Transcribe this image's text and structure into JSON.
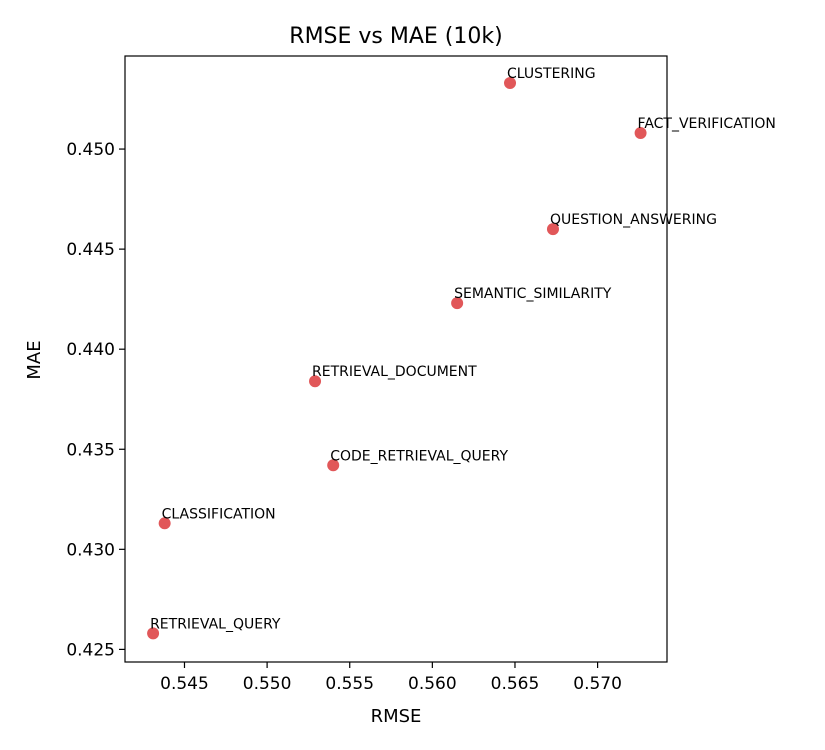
{
  "chart_data": {
    "type": "scatter",
    "title": "RMSE vs MAE (10k)",
    "xlabel": "RMSE",
    "ylabel": "MAE",
    "xlim": [
      0.5414,
      0.5742
    ],
    "ylim": [
      0.42437,
      0.45465
    ],
    "xticks": [
      0.545,
      0.55,
      0.555,
      0.56,
      0.565,
      0.57
    ],
    "xtick_labels": [
      "0.545",
      "0.550",
      "0.555",
      "0.560",
      "0.565",
      "0.570"
    ],
    "yticks": [
      0.425,
      0.43,
      0.435,
      0.44,
      0.445,
      0.45
    ],
    "ytick_labels": [
      "0.425",
      "0.430",
      "0.435",
      "0.440",
      "0.445",
      "0.450"
    ],
    "grid": false,
    "legend": "none",
    "point_color": "#e15759",
    "points": [
      {
        "label": "CLUSTERING",
        "x": 0.5647,
        "y": 0.4533
      },
      {
        "label": "FACT_VERIFICATION",
        "x": 0.5726,
        "y": 0.4508
      },
      {
        "label": "QUESTION_ANSWERING",
        "x": 0.5673,
        "y": 0.446
      },
      {
        "label": "SEMANTIC_SIMILARITY",
        "x": 0.5615,
        "y": 0.4423
      },
      {
        "label": "RETRIEVAL_DOCUMENT",
        "x": 0.5529,
        "y": 0.4384
      },
      {
        "label": "CODE_RETRIEVAL_QUERY",
        "x": 0.554,
        "y": 0.4342
      },
      {
        "label": "CLASSIFICATION",
        "x": 0.5438,
        "y": 0.4313
      },
      {
        "label": "RETRIEVAL_QUERY",
        "x": 0.5431,
        "y": 0.4258
      }
    ]
  }
}
